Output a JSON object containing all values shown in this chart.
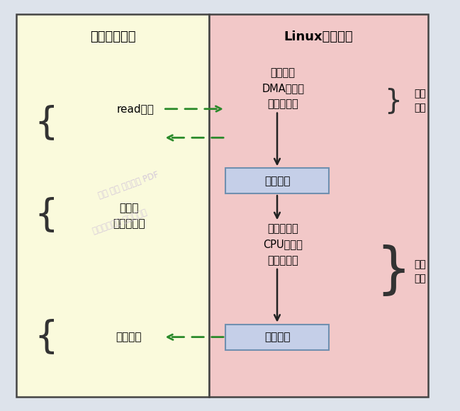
{
  "fig_width": 6.49,
  "fig_height": 5.8,
  "bg_color": "#dde3eb",
  "left_panel_color": "#fafadc",
  "right_panel_color": "#f2c8c8",
  "left_title": "用户程序空间",
  "right_title": "Linux内核空间",
  "box1_text": "复制完成",
  "box2_text": "复制完成",
  "box_color": "#c5cfe8",
  "box_edge_color": "#7090b0",
  "text_read": "read调用",
  "text_nonblock": "非阻塞\n做其他事情",
  "text_complete": "完成通知",
  "text_dma": "物理设备\nDMA复制到\n内核缓冲区",
  "text_cpu": "内核缓冲区\nCPU复制到\n用户缓冲区",
  "text_wait": "等待\n数据",
  "text_copy": "复制\n数据",
  "arrow_color": "#2a8a2a",
  "dark_arrow_color": "#222222",
  "panel_edge_color": "#444444",
  "watermark1": "领取 尼恩 学习圣经 PDF",
  "watermark2": "关注公众号： 技术自由圈",
  "watermark_color": "#c8b8d8"
}
